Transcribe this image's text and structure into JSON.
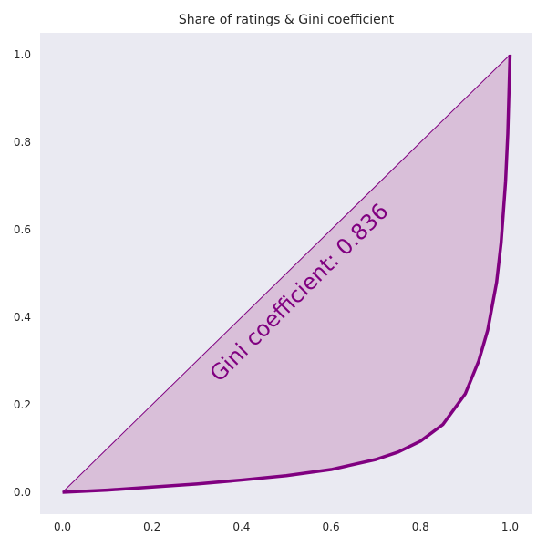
{
  "chart_data": {
    "type": "area",
    "title": "Share of ratings & Gini coefficient",
    "xlabel": "",
    "ylabel": "",
    "xlim": [
      -0.05,
      1.05
    ],
    "ylim": [
      -0.05,
      1.05
    ],
    "xticks": [
      "0.0",
      "0.2",
      "0.4",
      "0.6",
      "0.8",
      "1.0"
    ],
    "yticks": [
      "0.0",
      "0.2",
      "0.4",
      "0.6",
      "0.8",
      "1.0"
    ],
    "grid": false,
    "equality_line": {
      "x": [
        0,
        1
      ],
      "y": [
        0,
        1
      ]
    },
    "series": [
      {
        "x": [
          0,
          0.1,
          0.2,
          0.3,
          0.4,
          0.5,
          0.6,
          0.7,
          0.75,
          0.8,
          0.85,
          0.9,
          0.93,
          0.95,
          0.97,
          0.98,
          0.99,
          0.995,
          1.0
        ],
        "y": [
          0,
          0.005,
          0.012,
          0.019,
          0.028,
          0.038,
          0.052,
          0.075,
          0.092,
          0.117,
          0.155,
          0.225,
          0.3,
          0.37,
          0.48,
          0.57,
          0.71,
          0.82,
          1.0
        ]
      }
    ],
    "annotation": {
      "text": "Gini coefficient: 0.836",
      "x": 0.35,
      "y": 0.25
    },
    "colors": {
      "curve": "#800080",
      "fill": "#d9bfd9",
      "plot_background": "#eaeaf2",
      "text": "#262626"
    }
  }
}
